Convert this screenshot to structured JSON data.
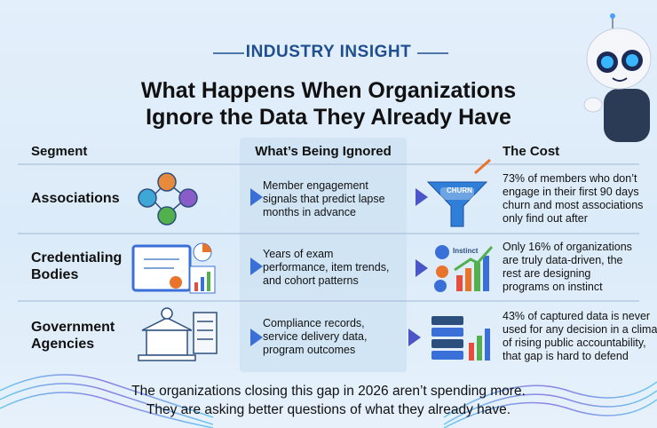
{
  "header": {
    "kicker": "INDUSTRY INSIGHT",
    "title": [
      "What Happens When Organizations",
      "Ignore the Data They Already Have"
    ]
  },
  "table": {
    "headers": [
      "Segment",
      "What’s Being Ignored",
      "The Cost"
    ],
    "rows": [
      {
        "segment": [
          "Associations"
        ],
        "ignored": [
          "Member engagement",
          "signals that predict lapse",
          "months in advance"
        ],
        "cost": [
          "73% of members who don’t",
          "engage in their first 90 days",
          "churn and most associations",
          "only find out after"
        ],
        "icon_label": "CHURN"
      },
      {
        "segment": [
          "Credentialing",
          "Bodies"
        ],
        "ignored": [
          "Years of exam",
          "performance, item trends,",
          "and cohort patterns"
        ],
        "cost": [
          "Only 16% of organizations",
          "are truly data-driven, the",
          "rest are designing",
          "programs on instinct"
        ],
        "icon_label": "Instinct"
      },
      {
        "segment": [
          "Government",
          "Agencies"
        ],
        "ignored": [
          "Compliance records,",
          "service delivery data,",
          "program outcomes"
        ],
        "cost": [
          "43% of captured data is never",
          "used for any decision in a climate",
          "of rising public accountability,",
          "that gap is hard to defend"
        ]
      }
    ]
  },
  "footer": [
    "The organizations closing this gap in 2026 aren’t spending more.",
    "They are asking better questions of what they already have."
  ]
}
